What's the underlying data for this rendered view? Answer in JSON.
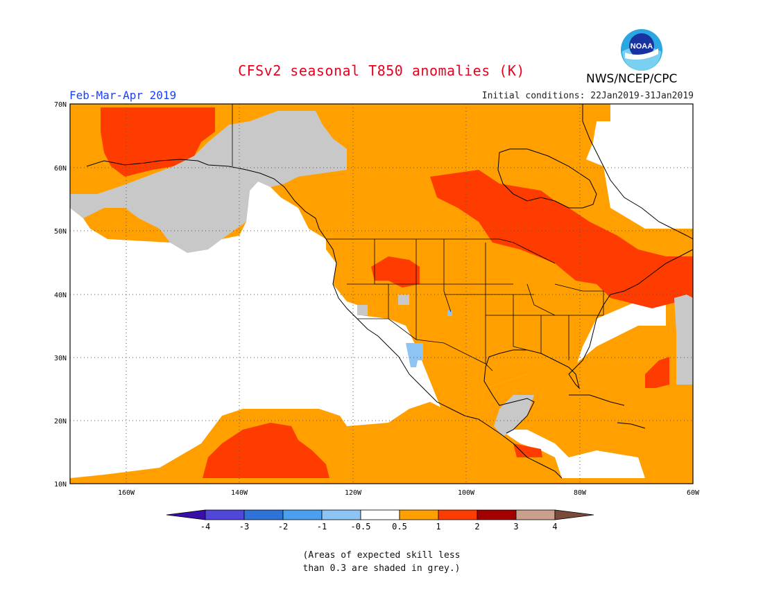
{
  "header": {
    "title": "CFSv2 seasonal T850 anomalies (K)",
    "period": "Feb-Mar-Apr 2019",
    "initial_conditions": "Initial conditions: 22Jan2019-31Jan2019",
    "agency": "NWS/NCEP/CPC",
    "logo_text": "NOAA"
  },
  "map": {
    "lon_range": [
      -170,
      -60
    ],
    "lat_range": [
      10,
      70
    ],
    "lat_labels": [
      "70N",
      "60N",
      "50N",
      "40N",
      "30N",
      "20N",
      "10N"
    ],
    "lon_labels": [
      "160W",
      "140W",
      "120W",
      "100W",
      "80W",
      "60W"
    ],
    "gridlines": "dotted",
    "regions": [
      {
        "name": "Bering Sea / Alaska warm core",
        "category": "1 to 2"
      },
      {
        "name": "Canadian Prairies to Great Lakes warm band",
        "category": "1 to 2"
      },
      {
        "name": "Northeast US / Maritimes warm region",
        "category": "1 to 2"
      },
      {
        "name": "Northern Rockies warm patch",
        "category": "1 to 2"
      },
      {
        "name": "Subtropical Pacific warm core",
        "category": "1 to 2"
      },
      {
        "name": "Gulf of Alaska low-skill area",
        "category": "low skill"
      },
      {
        "name": "Western Atlantic low-skill area",
        "category": "low skill"
      },
      {
        "name": "Southwest US cool spot",
        "category": "-1 to -0.5"
      }
    ]
  },
  "colorbar": {
    "labels": [
      "-4",
      "-3",
      "-2",
      "-1",
      "-0.5",
      "0.5",
      "1",
      "2",
      "3",
      "4"
    ],
    "colors": [
      "#3a0fa8",
      "#5046d8",
      "#2f73d8",
      "#4aa0ee",
      "#8ec4f4",
      "#ffffff",
      "#ffa000",
      "#ff3c00",
      "#a30000",
      "#c8a08c",
      "#7a4a3a"
    ]
  },
  "colors": {
    "c05_1": "#ffa000",
    "c1_2": "#ff3c00",
    "cm1": "#8ec4f4",
    "grey": "#c8c8c8",
    "title": "#e8001c",
    "period": "#1a3fff"
  },
  "footnote": {
    "line1": "(Areas of expected skill less",
    "line2": "than 0.3 are shaded in grey.)"
  }
}
